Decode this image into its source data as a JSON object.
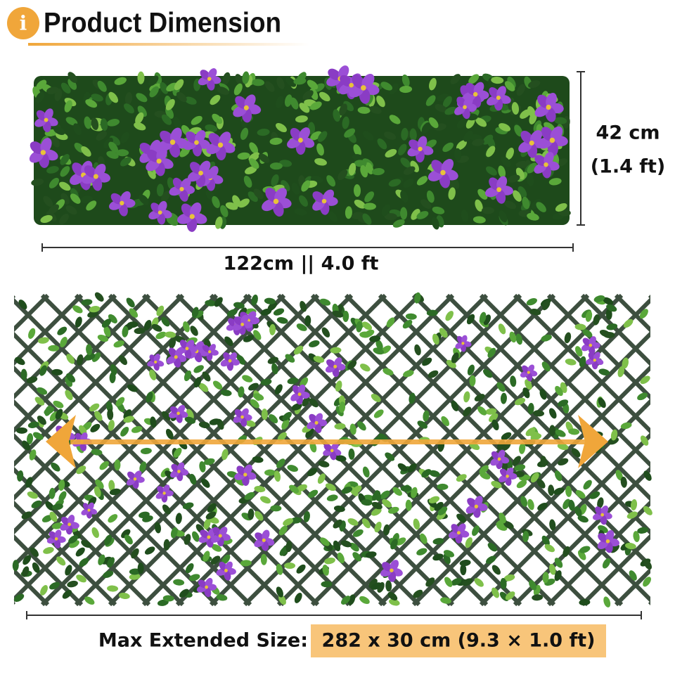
{
  "header": {
    "icon": "i",
    "title": "Product Dimension"
  },
  "compact": {
    "height_cm": "42 cm",
    "height_ft": "(1.4 ft)",
    "width": "122cm || 4.0 ft"
  },
  "extended": {
    "label": "Max Extended Size:",
    "size": "282 x 30 cm (9.3 × 1.0 ft)"
  }
}
